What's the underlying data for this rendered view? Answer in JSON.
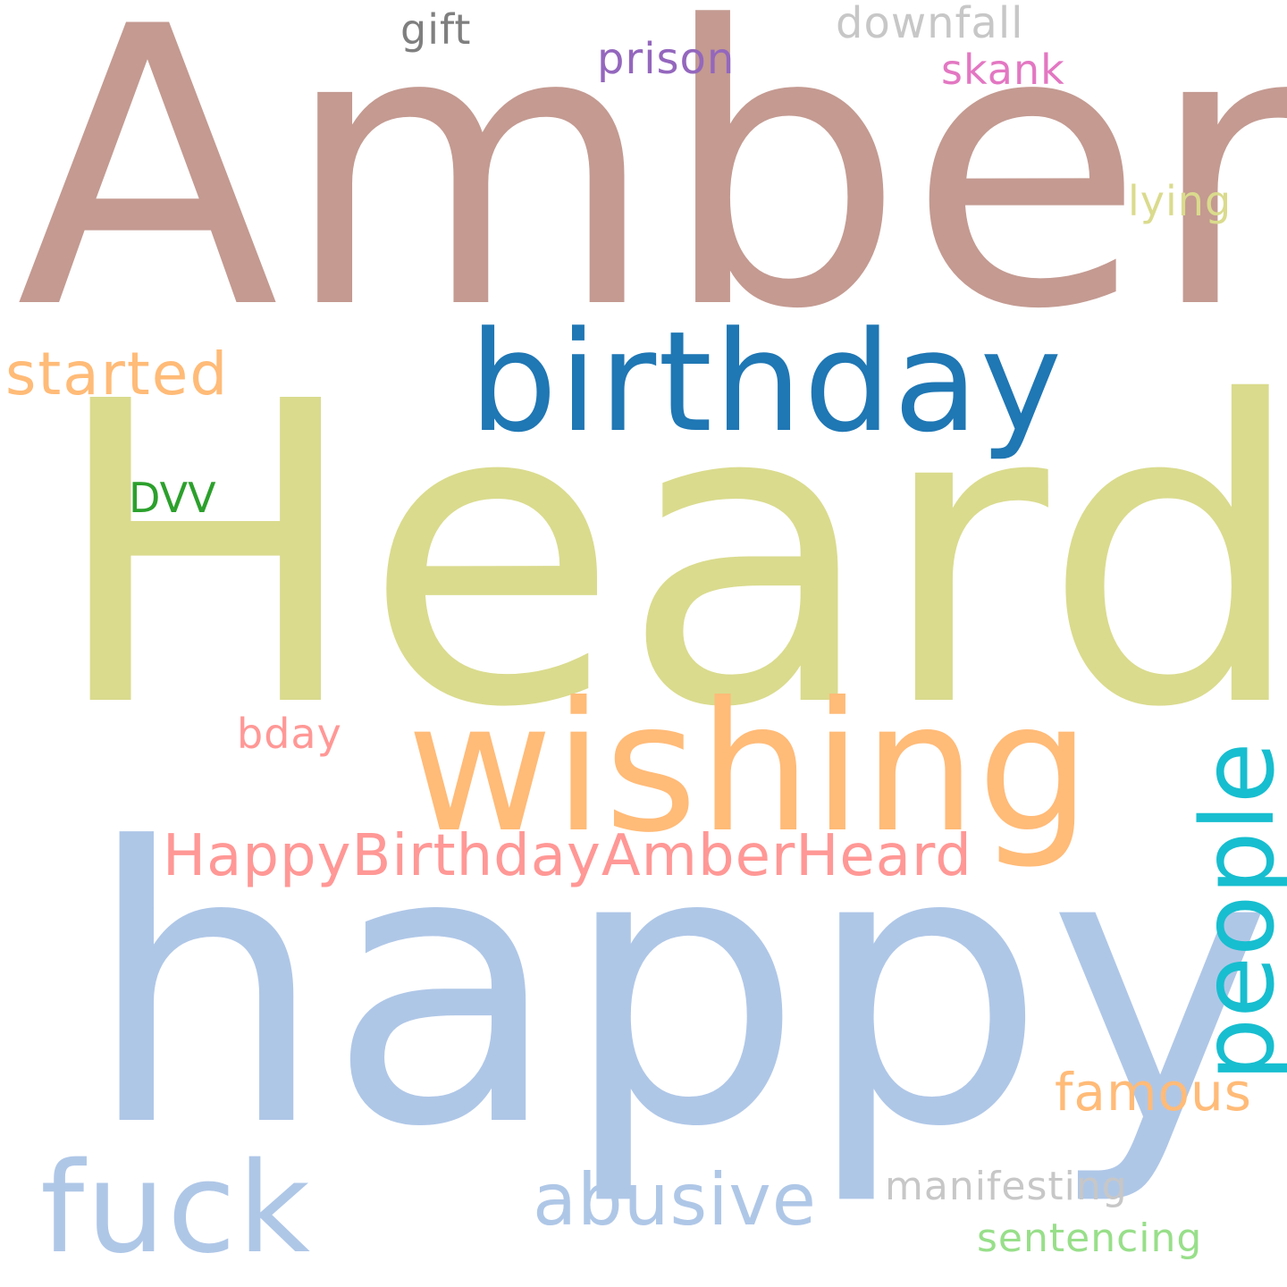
{
  "word_cloud": {
    "background": "#ffffff",
    "words": {
      "amber": {
        "text": "Amber",
        "color": "#c49a91"
      },
      "heard": {
        "text": "Heard",
        "color": "#dadb8d"
      },
      "happy": {
        "text": "happy",
        "color": "#afc7e7"
      },
      "birthday": {
        "text": "birthday",
        "color": "#1f77b4"
      },
      "wishing": {
        "text": "wishing",
        "color": "#ffbb78"
      },
      "fuck": {
        "text": "fuck",
        "color": "#afc7e7"
      },
      "people": {
        "text": "people",
        "color": "#17becf"
      },
      "hbah": {
        "text": "HappyBirthdayAmberHeard",
        "color": "#ff9896"
      },
      "abusive": {
        "text": "abusive",
        "color": "#afc7e7"
      },
      "started": {
        "text": "started",
        "color": "#ffbb78"
      },
      "famous": {
        "text": "famous",
        "color": "#ffbb78"
      },
      "prison": {
        "text": "prison",
        "color": "#9467bd"
      },
      "gift": {
        "text": "gift",
        "color": "#7f7f7f"
      },
      "downfall": {
        "text": "downfall",
        "color": "#c7c7c7"
      },
      "skank": {
        "text": "skank",
        "color": "#e377c2"
      },
      "lying": {
        "text": "lying",
        "color": "#dadb8d"
      },
      "dvv": {
        "text": "DVV",
        "color": "#2ca02c"
      },
      "bday": {
        "text": "bday",
        "color": "#ff9896"
      },
      "manifesting": {
        "text": "manifesting",
        "color": "#c7c7c7"
      },
      "sentencing": {
        "text": "sentencing",
        "color": "#98df8a"
      }
    }
  }
}
